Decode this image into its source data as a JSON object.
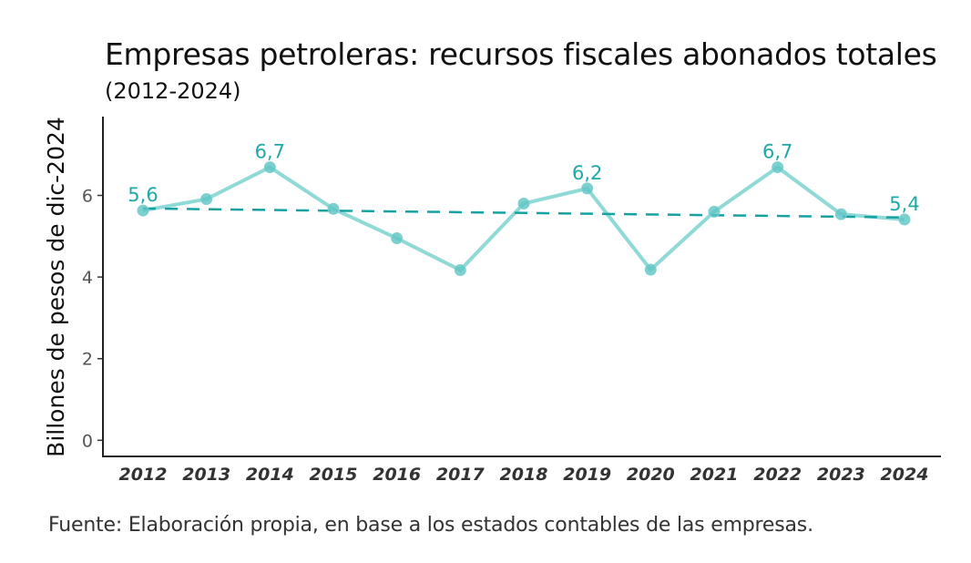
{
  "chart_data": {
    "type": "line",
    "title": "Empresas petroleras: recursos fiscales abonados totales",
    "subtitle": "(2012-2024)",
    "xlabel": "",
    "ylabel": "Billones de pesos de dic-2024",
    "caption": "Fuente: Elaboración propia, en base a los estados contables de las empresas.",
    "categories": [
      "2012",
      "2013",
      "2014",
      "2015",
      "2016",
      "2017",
      "2018",
      "2019",
      "2020",
      "2021",
      "2022",
      "2023",
      "2024"
    ],
    "values": [
      5.63,
      5.91,
      6.69,
      5.67,
      4.95,
      4.17,
      5.8,
      6.17,
      4.18,
      5.6,
      6.69,
      5.54,
      5.41
    ],
    "data_labels": [
      {
        "category": "2012",
        "text": "5,6"
      },
      {
        "category": "2014",
        "text": "6,7"
      },
      {
        "category": "2019",
        "text": "6,2"
      },
      {
        "category": "2022",
        "text": "6,7"
      },
      {
        "category": "2024",
        "text": "5,4"
      }
    ],
    "trend_line": {
      "style": "dashed",
      "start": 5.68,
      "end": 5.46
    },
    "yticks": [
      "0",
      "2",
      "4",
      "6"
    ],
    "ylim": [
      0,
      7.9
    ],
    "grid": false,
    "colors": {
      "line": "#8fd9d6",
      "marker": "#5cc4c4",
      "trend": "#17a2a2",
      "label": "#1fa8a8"
    }
  }
}
